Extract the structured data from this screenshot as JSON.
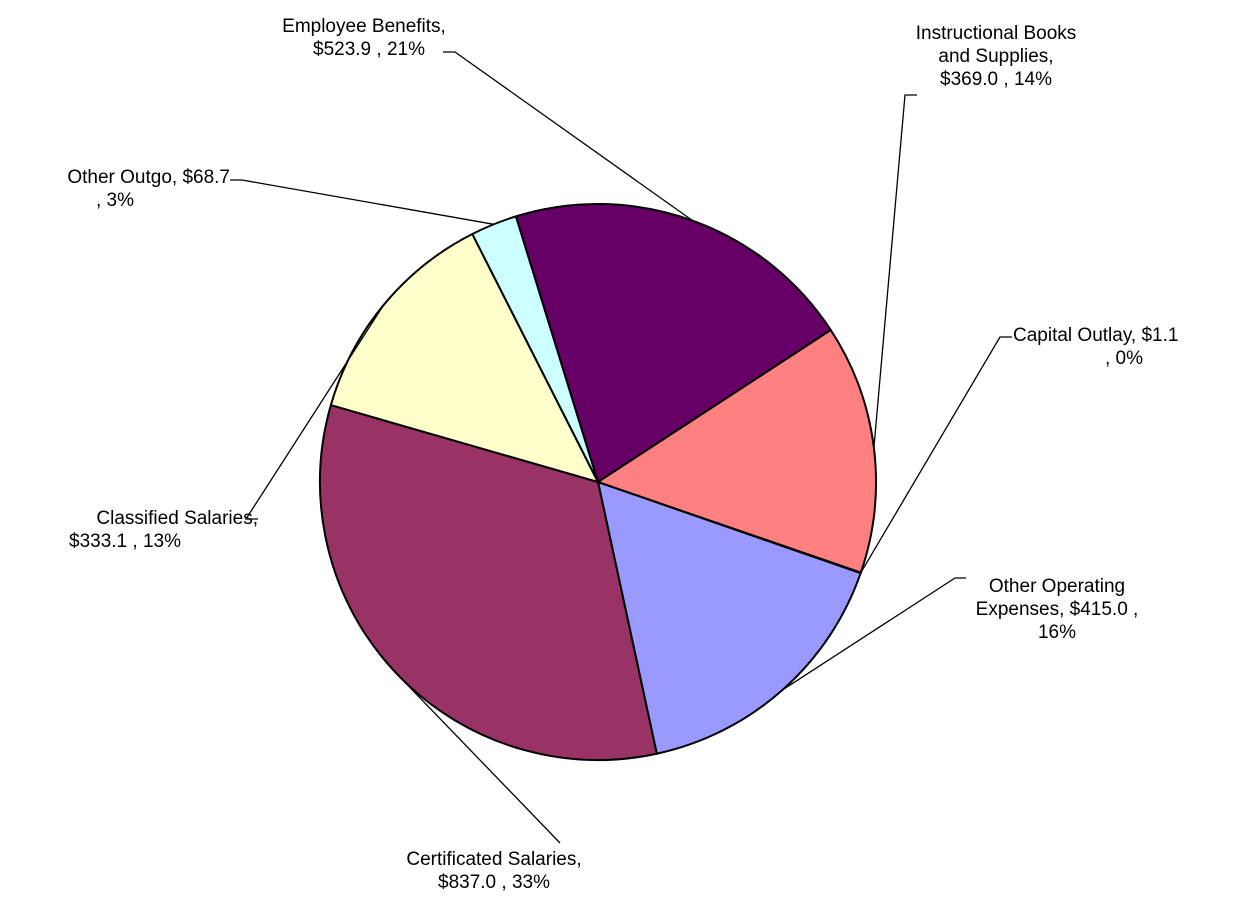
{
  "chart_data": {
    "type": "pie",
    "title": "",
    "slices": [
      {
        "name": "Capital Outlay",
        "value": 1.1,
        "percent": "0%",
        "value_label": "$1.1",
        "label_lines": [
          "Capital Outlay,  $1.1",
          ", 0%"
        ],
        "color": "#000080"
      },
      {
        "name": "Other Operating Expenses",
        "value": 415.0,
        "percent": "16%",
        "value_label": "$415.0",
        "label_lines": [
          "Other Operating",
          "Expenses,  $415.0 ,",
          "16%"
        ],
        "color": "#9999FF"
      },
      {
        "name": "Certificated Salaries",
        "value": 837.0,
        "percent": "33%",
        "value_label": "$837.0",
        "label_lines": [
          "Certificated Salaries,",
          "$837.0 , 33%"
        ],
        "color": "#993366"
      },
      {
        "name": "Classified Salaries",
        "value": 333.1,
        "percent": "13%",
        "value_label": "$333.1",
        "label_lines": [
          "Classified Salaries,",
          "$333.1 , 13%"
        ],
        "color": "#FFFFCC"
      },
      {
        "name": "Other Outgo",
        "value": 68.7,
        "percent": "3%",
        "value_label": "$68.7",
        "label_lines": [
          "Other Outgo,  $68.7",
          ", 3%"
        ],
        "color": "#CCFFFF"
      },
      {
        "name": "Employee Benefits",
        "value": 523.9,
        "percent": "21%",
        "value_label": "$523.9",
        "label_lines": [
          "Employee Benefits,",
          "$523.9 , 21%"
        ],
        "color": "#660066"
      },
      {
        "name": "Instructional Books and Supplies",
        "value": 369.0,
        "percent": "14%",
        "value_label": "$369.0",
        "label_lines": [
          "Instructional Books",
          "and Supplies,",
          "$369.0 , 14%"
        ],
        "color": "#FF8080"
      }
    ],
    "legend": "none",
    "data_labels": "outside with leader lines"
  }
}
